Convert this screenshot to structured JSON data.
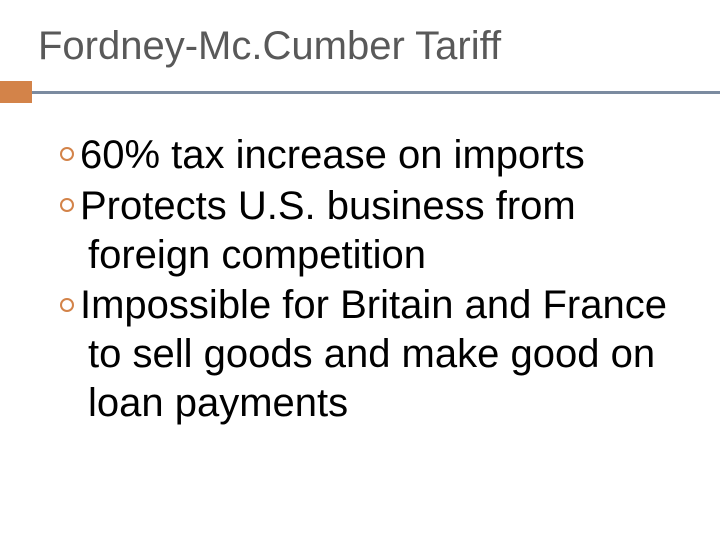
{
  "slide": {
    "title": "Fordney-Mc.Cumber Tariff",
    "bullets": [
      "60% tax increase on imports",
      "Protects U.S. business from foreign competition",
      "Impossible for Britain and France to sell goods and make good on loan payments"
    ]
  },
  "style": {
    "background_color": "#ffffff",
    "title_color": "#595959",
    "title_fontsize": 40,
    "accent_color": "#d38349",
    "underline_color": "#7b8ba0",
    "body_color": "#000000",
    "body_fontsize": 40,
    "bullet_border_color": "#d38349"
  }
}
